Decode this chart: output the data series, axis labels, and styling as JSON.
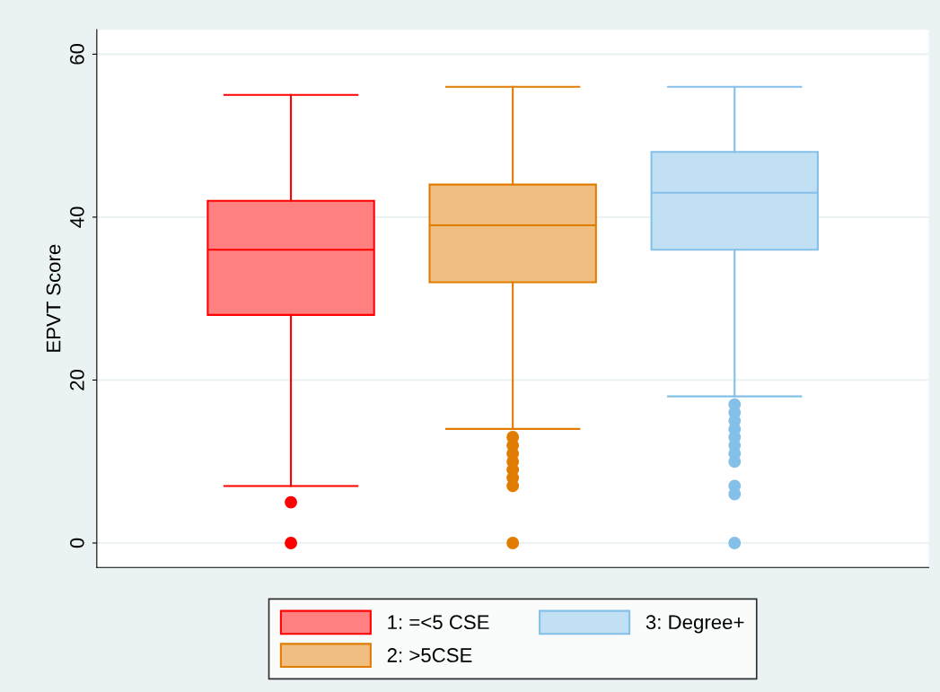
{
  "chart_data": {
    "type": "box",
    "ylabel": "EPVT Score",
    "categories": [
      null
    ],
    "series": [
      {
        "name": "1: =<5 CSE",
        "color": "#ff0000",
        "boxes": [
          {
            "low": 7,
            "q1": 28,
            "median": 36,
            "q3": 42,
            "high": 55,
            "outliers": [
              5,
              0
            ]
          }
        ]
      },
      {
        "name": "2: >5CSE",
        "color": "#e07c00",
        "boxes": [
          {
            "low": 14,
            "q1": 32,
            "median": 39,
            "q3": 44,
            "high": 56,
            "outliers": [
              13,
              12,
              11,
              10,
              9,
              8,
              7,
              0
            ]
          }
        ]
      },
      {
        "name": "3: Degree+",
        "color": "#84c0e8",
        "boxes": [
          {
            "low": 18,
            "q1": 36,
            "median": 43,
            "q3": 48,
            "high": 56,
            "outliers": [
              17,
              16,
              15,
              14,
              13,
              12,
              11,
              10,
              7,
              6,
              0
            ]
          }
        ]
      }
    ],
    "ylim": [
      -3,
      63
    ],
    "yticks": [
      0,
      20,
      40,
      60
    ],
    "grid": "y",
    "legend": "bottom",
    "tick_labels": "y"
  }
}
